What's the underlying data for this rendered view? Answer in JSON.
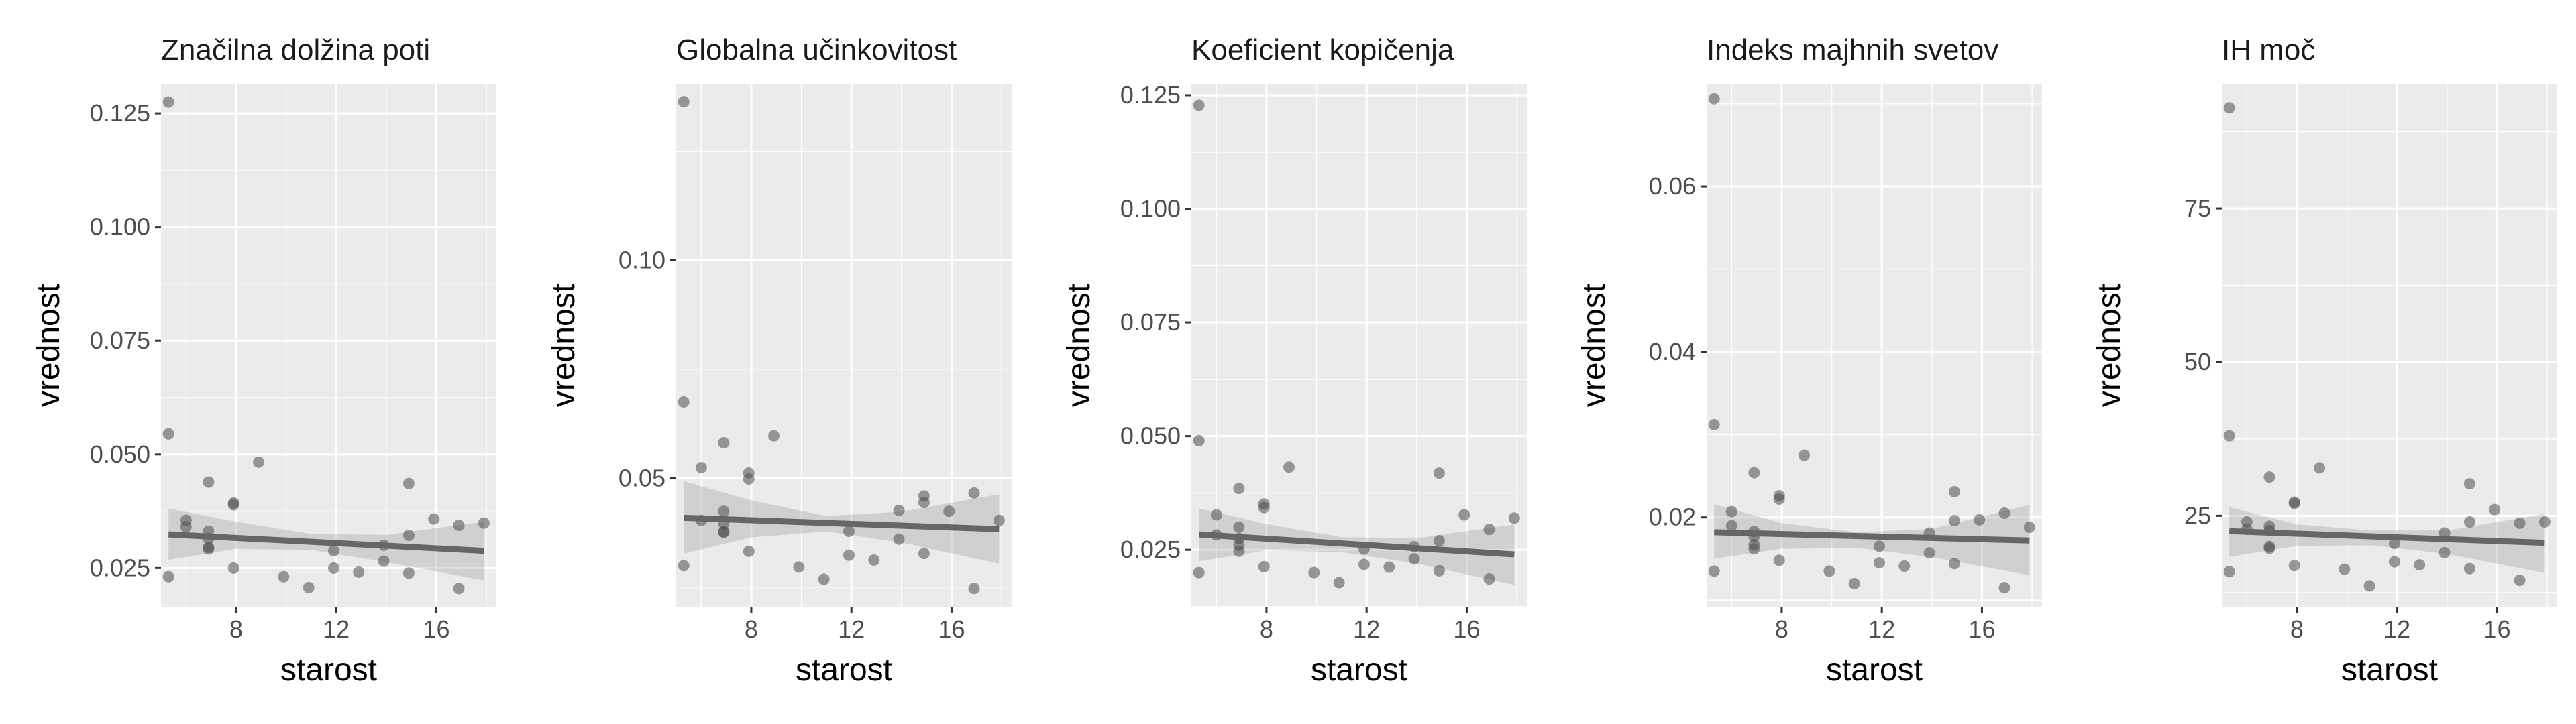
{
  "chart_data": [
    {
      "type": "scatter",
      "title": "Značilna dolžina poti",
      "xlabel": "starost",
      "ylabel": "vrednost",
      "xlim": [
        5.0,
        18.4
      ],
      "ylim": [
        0.0165,
        0.1315
      ],
      "x_ticks": [
        {
          "value": 8,
          "label": "8"
        },
        {
          "value": 12,
          "label": "12"
        },
        {
          "value": 16,
          "label": "16"
        }
      ],
      "y_ticks": [
        {
          "value": 0.025,
          "label": "0.025"
        },
        {
          "value": 0.05,
          "label": "0.050"
        },
        {
          "value": 0.075,
          "label": "0.075"
        },
        {
          "value": 0.1,
          "label": "0.100"
        },
        {
          "value": 0.125,
          "label": "0.125"
        }
      ],
      "points": [
        {
          "x": 5.3,
          "y": 0.1275
        },
        {
          "x": 5.3,
          "y": 0.0545
        },
        {
          "x": 5.3,
          "y": 0.0231
        },
        {
          "x": 6.0,
          "y": 0.0341
        },
        {
          "x": 6.0,
          "y": 0.0355
        },
        {
          "x": 6.9,
          "y": 0.0439
        },
        {
          "x": 6.9,
          "y": 0.0331
        },
        {
          "x": 6.9,
          "y": 0.0315
        },
        {
          "x": 6.9,
          "y": 0.0296
        },
        {
          "x": 6.9,
          "y": 0.0292
        },
        {
          "x": 7.9,
          "y": 0.0393
        },
        {
          "x": 7.9,
          "y": 0.0389
        },
        {
          "x": 7.9,
          "y": 0.025
        },
        {
          "x": 8.9,
          "y": 0.0483
        },
        {
          "x": 9.9,
          "y": 0.0231
        },
        {
          "x": 10.9,
          "y": 0.0207
        },
        {
          "x": 11.9,
          "y": 0.0288
        },
        {
          "x": 11.9,
          "y": 0.025
        },
        {
          "x": 12.9,
          "y": 0.0241
        },
        {
          "x": 13.9,
          "y": 0.03
        },
        {
          "x": 13.9,
          "y": 0.0265
        },
        {
          "x": 14.9,
          "y": 0.0436
        },
        {
          "x": 14.9,
          "y": 0.0322
        },
        {
          "x": 14.9,
          "y": 0.0239
        },
        {
          "x": 15.9,
          "y": 0.0358
        },
        {
          "x": 16.9,
          "y": 0.0344
        },
        {
          "x": 16.9,
          "y": 0.0205
        },
        {
          "x": 17.9,
          "y": 0.0349
        }
      ],
      "trend": {
        "x": [
          5.3,
          17.9
        ],
        "y": [
          0.0324,
          0.0288
        ]
      },
      "band": {
        "x": [
          5.3,
          8,
          11,
          14,
          17.9
        ],
        "lower": [
          0.0268,
          0.0292,
          0.029,
          0.0263,
          0.0223
        ],
        "upper": [
          0.0381,
          0.0352,
          0.0325,
          0.0323,
          0.0352
        ]
      }
    },
    {
      "type": "scatter",
      "title": "Globalna učinkovitost",
      "xlabel": "starost",
      "ylabel": "vrednost",
      "xlim": [
        5.0,
        18.4
      ],
      "ylim": [
        0.0205,
        0.1405
      ],
      "x_ticks": [
        {
          "value": 8,
          "label": "8"
        },
        {
          "value": 12,
          "label": "12"
        },
        {
          "value": 16,
          "label": "16"
        }
      ],
      "y_ticks": [
        {
          "value": 0.05,
          "label": "0.05"
        },
        {
          "value": 0.1,
          "label": "0.10"
        }
      ],
      "points": [
        {
          "x": 5.3,
          "y": 0.1364
        },
        {
          "x": 5.3,
          "y": 0.0675
        },
        {
          "x": 5.3,
          "y": 0.0299
        },
        {
          "x": 6.0,
          "y": 0.0524
        },
        {
          "x": 6.0,
          "y": 0.0403
        },
        {
          "x": 6.9,
          "y": 0.0581
        },
        {
          "x": 6.9,
          "y": 0.0424
        },
        {
          "x": 6.9,
          "y": 0.0396
        },
        {
          "x": 6.9,
          "y": 0.0377
        },
        {
          "x": 6.9,
          "y": 0.0376
        },
        {
          "x": 7.9,
          "y": 0.0512
        },
        {
          "x": 7.9,
          "y": 0.0498
        },
        {
          "x": 7.9,
          "y": 0.0332
        },
        {
          "x": 8.9,
          "y": 0.0597
        },
        {
          "x": 9.9,
          "y": 0.0296
        },
        {
          "x": 10.9,
          "y": 0.0268
        },
        {
          "x": 11.9,
          "y": 0.0378
        },
        {
          "x": 11.9,
          "y": 0.0323
        },
        {
          "x": 12.9,
          "y": 0.0312
        },
        {
          "x": 13.9,
          "y": 0.0426
        },
        {
          "x": 13.9,
          "y": 0.036
        },
        {
          "x": 14.9,
          "y": 0.0459
        },
        {
          "x": 14.9,
          "y": 0.0444
        },
        {
          "x": 14.9,
          "y": 0.0327
        },
        {
          "x": 15.9,
          "y": 0.0424
        },
        {
          "x": 16.9,
          "y": 0.0466
        },
        {
          "x": 16.9,
          "y": 0.0247
        },
        {
          "x": 17.9,
          "y": 0.0403
        }
      ],
      "trend": {
        "x": [
          5.3,
          17.9
        ],
        "y": [
          0.0409,
          0.0383
        ]
      },
      "band": {
        "x": [
          5.3,
          8,
          11,
          14,
          17.9
        ],
        "lower": [
          0.0327,
          0.0364,
          0.0378,
          0.0352,
          0.0304
        ],
        "upper": [
          0.0493,
          0.0449,
          0.0413,
          0.0423,
          0.0463
        ]
      }
    },
    {
      "type": "scatter",
      "title": "Koeficient kopičenja",
      "xlabel": "starost",
      "ylabel": "vrednost",
      "xlim": [
        5.0,
        18.4
      ],
      "ylim": [
        0.0125,
        0.1275
      ],
      "x_ticks": [
        {
          "value": 8,
          "label": "8"
        },
        {
          "value": 12,
          "label": "12"
        },
        {
          "value": 16,
          "label": "16"
        }
      ],
      "y_ticks": [
        {
          "value": 0.025,
          "label": "0.025"
        },
        {
          "value": 0.05,
          "label": "0.050"
        },
        {
          "value": 0.075,
          "label": "0.075"
        },
        {
          "value": 0.1,
          "label": "0.100"
        },
        {
          "value": 0.125,
          "label": "0.125"
        }
      ],
      "points": [
        {
          "x": 5.3,
          "y": 0.1228
        },
        {
          "x": 5.3,
          "y": 0.049
        },
        {
          "x": 5.3,
          "y": 0.02
        },
        {
          "x": 6.0,
          "y": 0.0327
        },
        {
          "x": 6.0,
          "y": 0.0283
        },
        {
          "x": 6.9,
          "y": 0.0385
        },
        {
          "x": 6.9,
          "y": 0.03
        },
        {
          "x": 6.9,
          "y": 0.0275
        },
        {
          "x": 6.9,
          "y": 0.026
        },
        {
          "x": 6.9,
          "y": 0.0247
        },
        {
          "x": 7.9,
          "y": 0.0351
        },
        {
          "x": 7.9,
          "y": 0.0343
        },
        {
          "x": 7.9,
          "y": 0.0213
        },
        {
          "x": 8.9,
          "y": 0.0432
        },
        {
          "x": 9.9,
          "y": 0.02
        },
        {
          "x": 10.9,
          "y": 0.0178
        },
        {
          "x": 11.9,
          "y": 0.0252
        },
        {
          "x": 11.9,
          "y": 0.0218
        },
        {
          "x": 12.9,
          "y": 0.0212
        },
        {
          "x": 13.9,
          "y": 0.0257
        },
        {
          "x": 13.9,
          "y": 0.023
        },
        {
          "x": 14.9,
          "y": 0.0419
        },
        {
          "x": 14.9,
          "y": 0.027
        },
        {
          "x": 14.9,
          "y": 0.0204
        },
        {
          "x": 15.9,
          "y": 0.0327
        },
        {
          "x": 16.9,
          "y": 0.0295
        },
        {
          "x": 16.9,
          "y": 0.0186
        },
        {
          "x": 17.9,
          "y": 0.032
        }
      ],
      "trend": {
        "x": [
          5.3,
          17.9
        ],
        "y": [
          0.0284,
          0.024
        ]
      },
      "band": {
        "x": [
          5.3,
          8,
          11,
          14,
          17.9
        ],
        "lower": [
          0.0225,
          0.0249,
          0.0245,
          0.022,
          0.0173
        ],
        "upper": [
          0.0341,
          0.0307,
          0.0278,
          0.0276,
          0.0306
        ]
      }
    },
    {
      "type": "scatter",
      "title": "Indeks majhnih svetov",
      "xlabel": "starost",
      "ylabel": "vrednost",
      "xlim": [
        5.0,
        18.4
      ],
      "ylim": [
        0.0092,
        0.0724
      ],
      "x_ticks": [
        {
          "value": 8,
          "label": "8"
        },
        {
          "value": 12,
          "label": "12"
        },
        {
          "value": 16,
          "label": "16"
        }
      ],
      "y_ticks": [
        {
          "value": 0.02,
          "label": "0.02"
        },
        {
          "value": 0.04,
          "label": "0.04"
        },
        {
          "value": 0.06,
          "label": "0.06"
        }
      ],
      "points": [
        {
          "x": 5.3,
          "y": 0.0706
        },
        {
          "x": 5.3,
          "y": 0.0312
        },
        {
          "x": 5.3,
          "y": 0.0135
        },
        {
          "x": 6.0,
          "y": 0.0207
        },
        {
          "x": 6.0,
          "y": 0.019
        },
        {
          "x": 6.9,
          "y": 0.0254
        },
        {
          "x": 6.9,
          "y": 0.0183
        },
        {
          "x": 6.9,
          "y": 0.0177
        },
        {
          "x": 6.9,
          "y": 0.0167
        },
        {
          "x": 6.9,
          "y": 0.0162
        },
        {
          "x": 7.9,
          "y": 0.0226
        },
        {
          "x": 7.9,
          "y": 0.0222
        },
        {
          "x": 7.9,
          "y": 0.0148
        },
        {
          "x": 8.9,
          "y": 0.0275
        },
        {
          "x": 9.9,
          "y": 0.0135
        },
        {
          "x": 10.9,
          "y": 0.012
        },
        {
          "x": 11.9,
          "y": 0.0165
        },
        {
          "x": 11.9,
          "y": 0.0145
        },
        {
          "x": 12.9,
          "y": 0.0141
        },
        {
          "x": 13.9,
          "y": 0.0181
        },
        {
          "x": 13.9,
          "y": 0.0157
        },
        {
          "x": 14.9,
          "y": 0.0231
        },
        {
          "x": 14.9,
          "y": 0.0196
        },
        {
          "x": 14.9,
          "y": 0.0144
        },
        {
          "x": 15.9,
          "y": 0.0197
        },
        {
          "x": 16.9,
          "y": 0.0205
        },
        {
          "x": 16.9,
          "y": 0.0115
        },
        {
          "x": 17.9,
          "y": 0.0188
        }
      ],
      "trend": {
        "x": [
          5.3,
          17.9
        ],
        "y": [
          0.0182,
          0.0172
        ]
      },
      "band": {
        "x": [
          5.3,
          8,
          11,
          14,
          17.9
        ],
        "lower": [
          0.015,
          0.0162,
          0.0163,
          0.0152,
          0.013
        ],
        "upper": [
          0.0216,
          0.0193,
          0.0182,
          0.0186,
          0.0215
        ]
      }
    },
    {
      "type": "scatter",
      "title": "IH moč",
      "xlabel": "starost",
      "ylabel": "vrednost",
      "xlim": [
        5.0,
        18.4
      ],
      "ylim": [
        10.2,
        95.3
      ],
      "x_ticks": [
        {
          "value": 8,
          "label": "8"
        },
        {
          "value": 12,
          "label": "12"
        },
        {
          "value": 16,
          "label": "16"
        }
      ],
      "y_ticks": [
        {
          "value": 25,
          "label": "25"
        },
        {
          "value": 50,
          "label": "50"
        },
        {
          "value": 75,
          "label": "75"
        }
      ],
      "points": [
        {
          "x": 5.3,
          "y": 91.4
        },
        {
          "x": 5.3,
          "y": 38.0
        },
        {
          "x": 5.3,
          "y": 15.9
        },
        {
          "x": 6.0,
          "y": 24.0
        },
        {
          "x": 6.0,
          "y": 22.8
        },
        {
          "x": 6.9,
          "y": 31.3
        },
        {
          "x": 6.9,
          "y": 23.3
        },
        {
          "x": 6.9,
          "y": 22.6
        },
        {
          "x": 6.9,
          "y": 20.0
        },
        {
          "x": 6.9,
          "y": 19.7
        },
        {
          "x": 7.9,
          "y": 27.2
        },
        {
          "x": 7.9,
          "y": 27.0
        },
        {
          "x": 7.9,
          "y": 16.9
        },
        {
          "x": 8.9,
          "y": 32.8
        },
        {
          "x": 9.9,
          "y": 16.3
        },
        {
          "x": 10.9,
          "y": 13.6
        },
        {
          "x": 11.9,
          "y": 20.5
        },
        {
          "x": 11.9,
          "y": 17.5
        },
        {
          "x": 12.9,
          "y": 17.0
        },
        {
          "x": 13.9,
          "y": 22.2
        },
        {
          "x": 13.9,
          "y": 19.0
        },
        {
          "x": 14.9,
          "y": 30.2
        },
        {
          "x": 14.9,
          "y": 24.0
        },
        {
          "x": 14.9,
          "y": 16.4
        },
        {
          "x": 15.9,
          "y": 26.0
        },
        {
          "x": 16.9,
          "y": 23.8
        },
        {
          "x": 16.9,
          "y": 14.5
        },
        {
          "x": 17.9,
          "y": 24.0
        }
      ],
      "trend": {
        "x": [
          5.3,
          17.9
        ],
        "y": [
          22.5,
          20.6
        ]
      },
      "band": {
        "x": [
          5.3,
          8,
          11,
          14,
          17.9
        ],
        "lower": [
          18.3,
          20.1,
          20.2,
          18.8,
          15.7
        ],
        "upper": [
          26.4,
          23.6,
          22.6,
          22.6,
          25.3
        ]
      }
    }
  ]
}
